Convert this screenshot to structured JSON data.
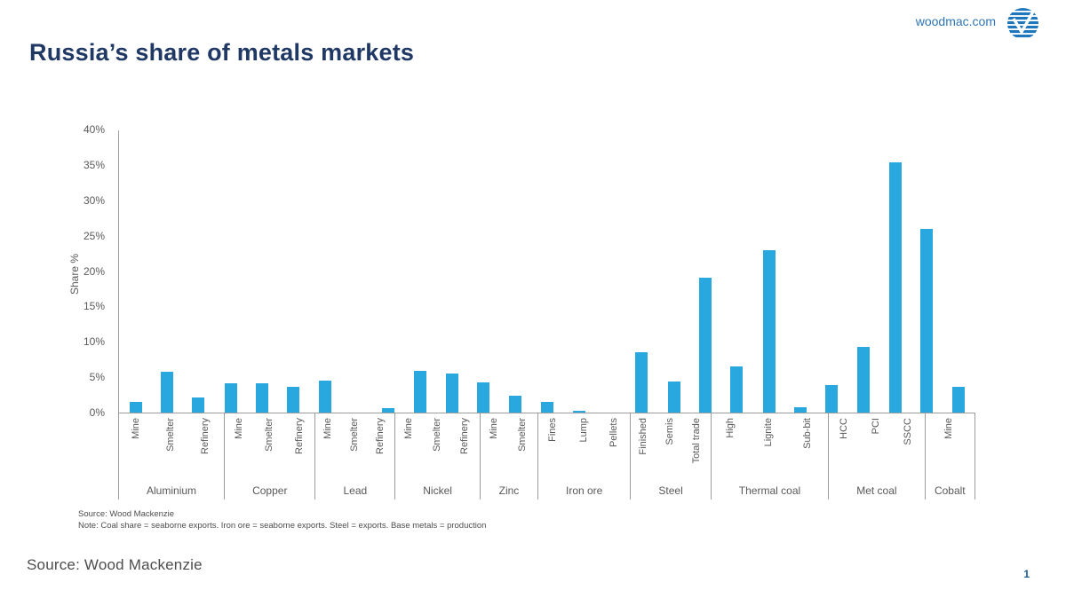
{
  "header": {
    "title": "Russia’s share of metals markets",
    "brand_url": "woodmac.com"
  },
  "chart_data": {
    "type": "bar",
    "title": "Russia’s share of metals markets",
    "ylabel": "Share %",
    "ylim": [
      0,
      40
    ],
    "ytick_labels": [
      "0%",
      "5%",
      "10%",
      "15%",
      "20%",
      "25%",
      "30%",
      "35%",
      "40%"
    ],
    "grid": false,
    "legend": "none",
    "bar_color": "#29a7df",
    "groups": [
      {
        "label": "Aluminium",
        "items": [
          {
            "label": "Mine",
            "value": 1.5
          },
          {
            "label": "Smelter",
            "value": 5.8
          },
          {
            "label": "Refinery",
            "value": 2.1
          }
        ]
      },
      {
        "label": "Copper",
        "items": [
          {
            "label": "Mine",
            "value": 4.1
          },
          {
            "label": "Smelter",
            "value": 4.1
          },
          {
            "label": "Refinery",
            "value": 3.6
          }
        ]
      },
      {
        "label": "Lead",
        "items": [
          {
            "label": "Mine",
            "value": 4.5
          },
          {
            "label": "Smelter",
            "value": 0
          },
          {
            "label": "Refinery",
            "value": 0.6
          }
        ]
      },
      {
        "label": "Nickel",
        "items": [
          {
            "label": "Mine",
            "value": 5.9
          },
          {
            "label": "Smelter",
            "value": 5.5
          },
          {
            "label": "Refinery",
            "value": 4.3
          }
        ]
      },
      {
        "label": "Zinc",
        "items": [
          {
            "label": "Mine",
            "value": 2.4
          },
          {
            "label": "Smelter",
            "value": 1.5
          }
        ]
      },
      {
        "label": "Iron ore",
        "items": [
          {
            "label": "Fines",
            "value": 0.2
          },
          {
            "label": "Lump",
            "value": 0
          },
          {
            "label": "Pellets",
            "value": 8.5
          }
        ]
      },
      {
        "label": "Steel",
        "items": [
          {
            "label": "Finished",
            "value": 4.4
          },
          {
            "label": "Semis",
            "value": 19
          },
          {
            "label": "Total trade",
            "value": 6.5
          }
        ]
      },
      {
        "label": "Thermal coal",
        "items": [
          {
            "label": "High",
            "value": 23
          },
          {
            "label": "Lignite",
            "value": 0.7
          },
          {
            "label": "Sub-bit",
            "value": 3.9
          }
        ]
      },
      {
        "label": "Met coal",
        "items": [
          {
            "label": "HCC",
            "value": 9.3
          },
          {
            "label": "PCI",
            "value": 35.4
          },
          {
            "label": "SSCC",
            "value": 26
          }
        ]
      },
      {
        "label": "Cobalt",
        "items": [
          {
            "label": "Mine",
            "value": 3.6
          }
        ]
      }
    ],
    "source_note": "Source:  Wood Mackenzie",
    "method_note": "Note:  Coal share = seaborne  exports.  Iron ore = seaborne exports.  Steel  =  exports.  Base metals  = production"
  },
  "footer": {
    "source": "Source: Wood Mackenzie",
    "page_number": "1"
  },
  "colors": {
    "bar_blue": "#29a7df",
    "title_navy": "#1f3864",
    "brand_blue": "#2e75b6",
    "axis_gray": "#9d9d9d",
    "text_gray": "#595959"
  }
}
